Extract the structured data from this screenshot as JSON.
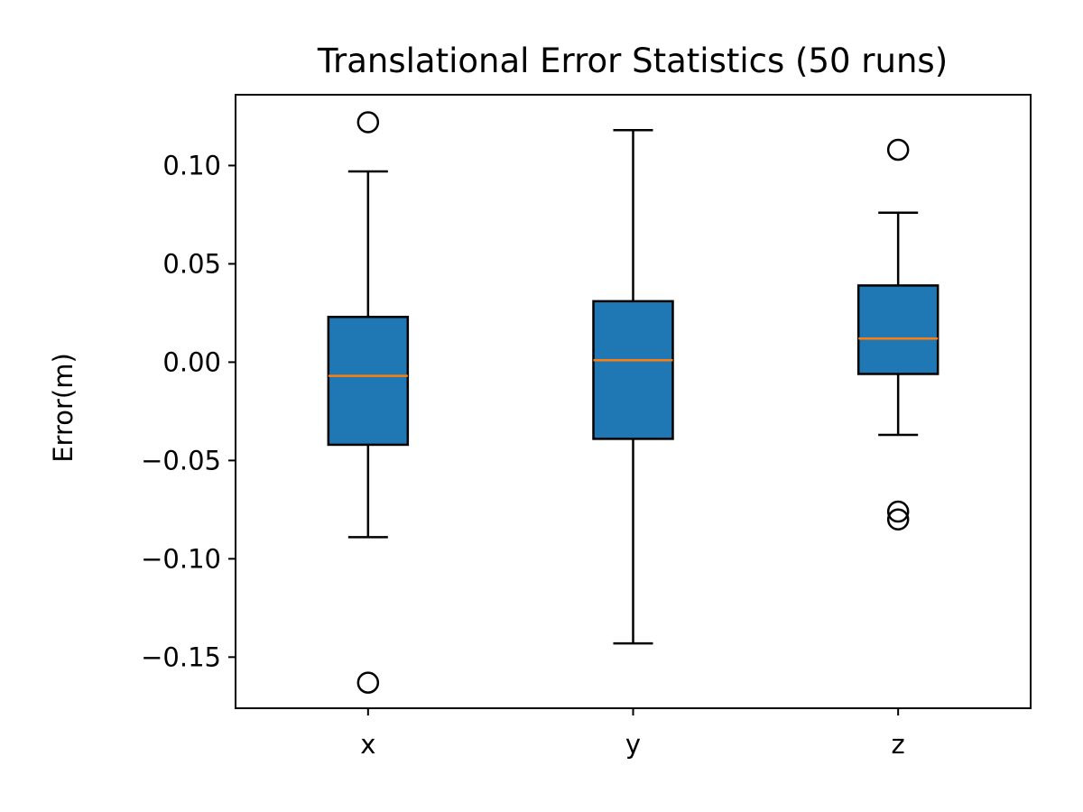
{
  "chart_data": {
    "type": "box",
    "title": "Translational Error Statistics (50 runs)",
    "xlabel": "",
    "ylabel": "Error(m)",
    "ylim": [
      -0.176,
      0.136
    ],
    "yticks": [
      0.1,
      0.05,
      0.0,
      -0.05,
      -0.1,
      -0.15
    ],
    "ytick_labels": [
      "0.10",
      "0.05",
      "0.00",
      "−0.05",
      "−0.10",
      "−0.15"
    ],
    "grid": false,
    "colors": {
      "box_fill": "#1f77b4",
      "median": "#ff7f0e",
      "edge": "#000000"
    },
    "categories": [
      "x",
      "y",
      "z"
    ],
    "boxes": [
      {
        "label": "x",
        "whisker_low": -0.089,
        "q1": -0.042,
        "median": -0.007,
        "q3": 0.023,
        "whisker_high": 0.097,
        "outliers": [
          0.122,
          -0.163
        ]
      },
      {
        "label": "y",
        "whisker_low": -0.143,
        "q1": -0.039,
        "median": 0.001,
        "q3": 0.031,
        "whisker_high": 0.118,
        "outliers": []
      },
      {
        "label": "z",
        "whisker_low": -0.037,
        "q1": -0.006,
        "median": 0.012,
        "q3": 0.039,
        "whisker_high": 0.076,
        "outliers": [
          0.108,
          -0.076,
          -0.08
        ]
      }
    ]
  }
}
